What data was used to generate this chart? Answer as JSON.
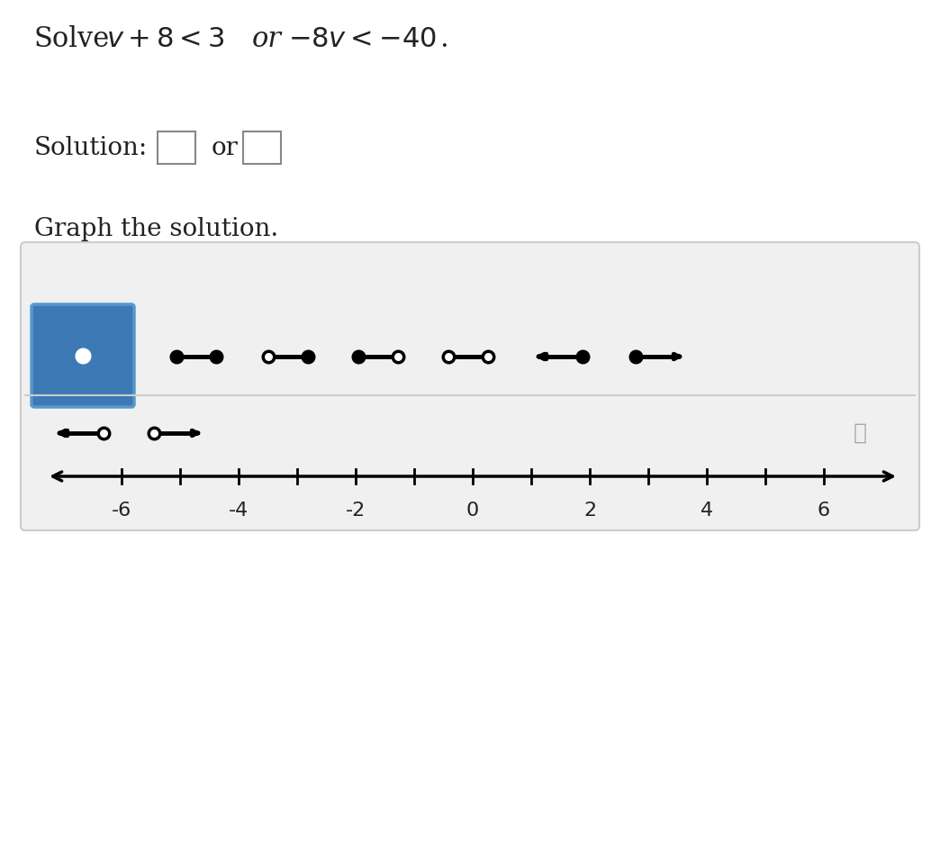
{
  "title_text": "Solve  $v + 8 < 3$  or  $-8v < -40$.",
  "solution_text": "Solution:",
  "or_text": "or",
  "graph_text": "Graph the solution.",
  "background_color": "#ffffff",
  "panel_bg": "#f0f0f0",
  "panel_border": "#cccccc",
  "selected_box_color": "#3d7ab5",
  "selected_box_border": "#2a5f9e",
  "number_line_range": [
    -7.5,
    7.5
  ],
  "tick_positions": [
    -6,
    -5,
    -4,
    -3,
    -2,
    -1,
    0,
    1,
    2,
    3,
    4,
    5,
    6
  ],
  "tick_labels": [
    "-6",
    "-4",
    "-2",
    "0",
    "2",
    "4",
    "6"
  ],
  "tick_label_positions": [
    -6,
    -4,
    -2,
    0,
    2,
    4,
    6
  ]
}
